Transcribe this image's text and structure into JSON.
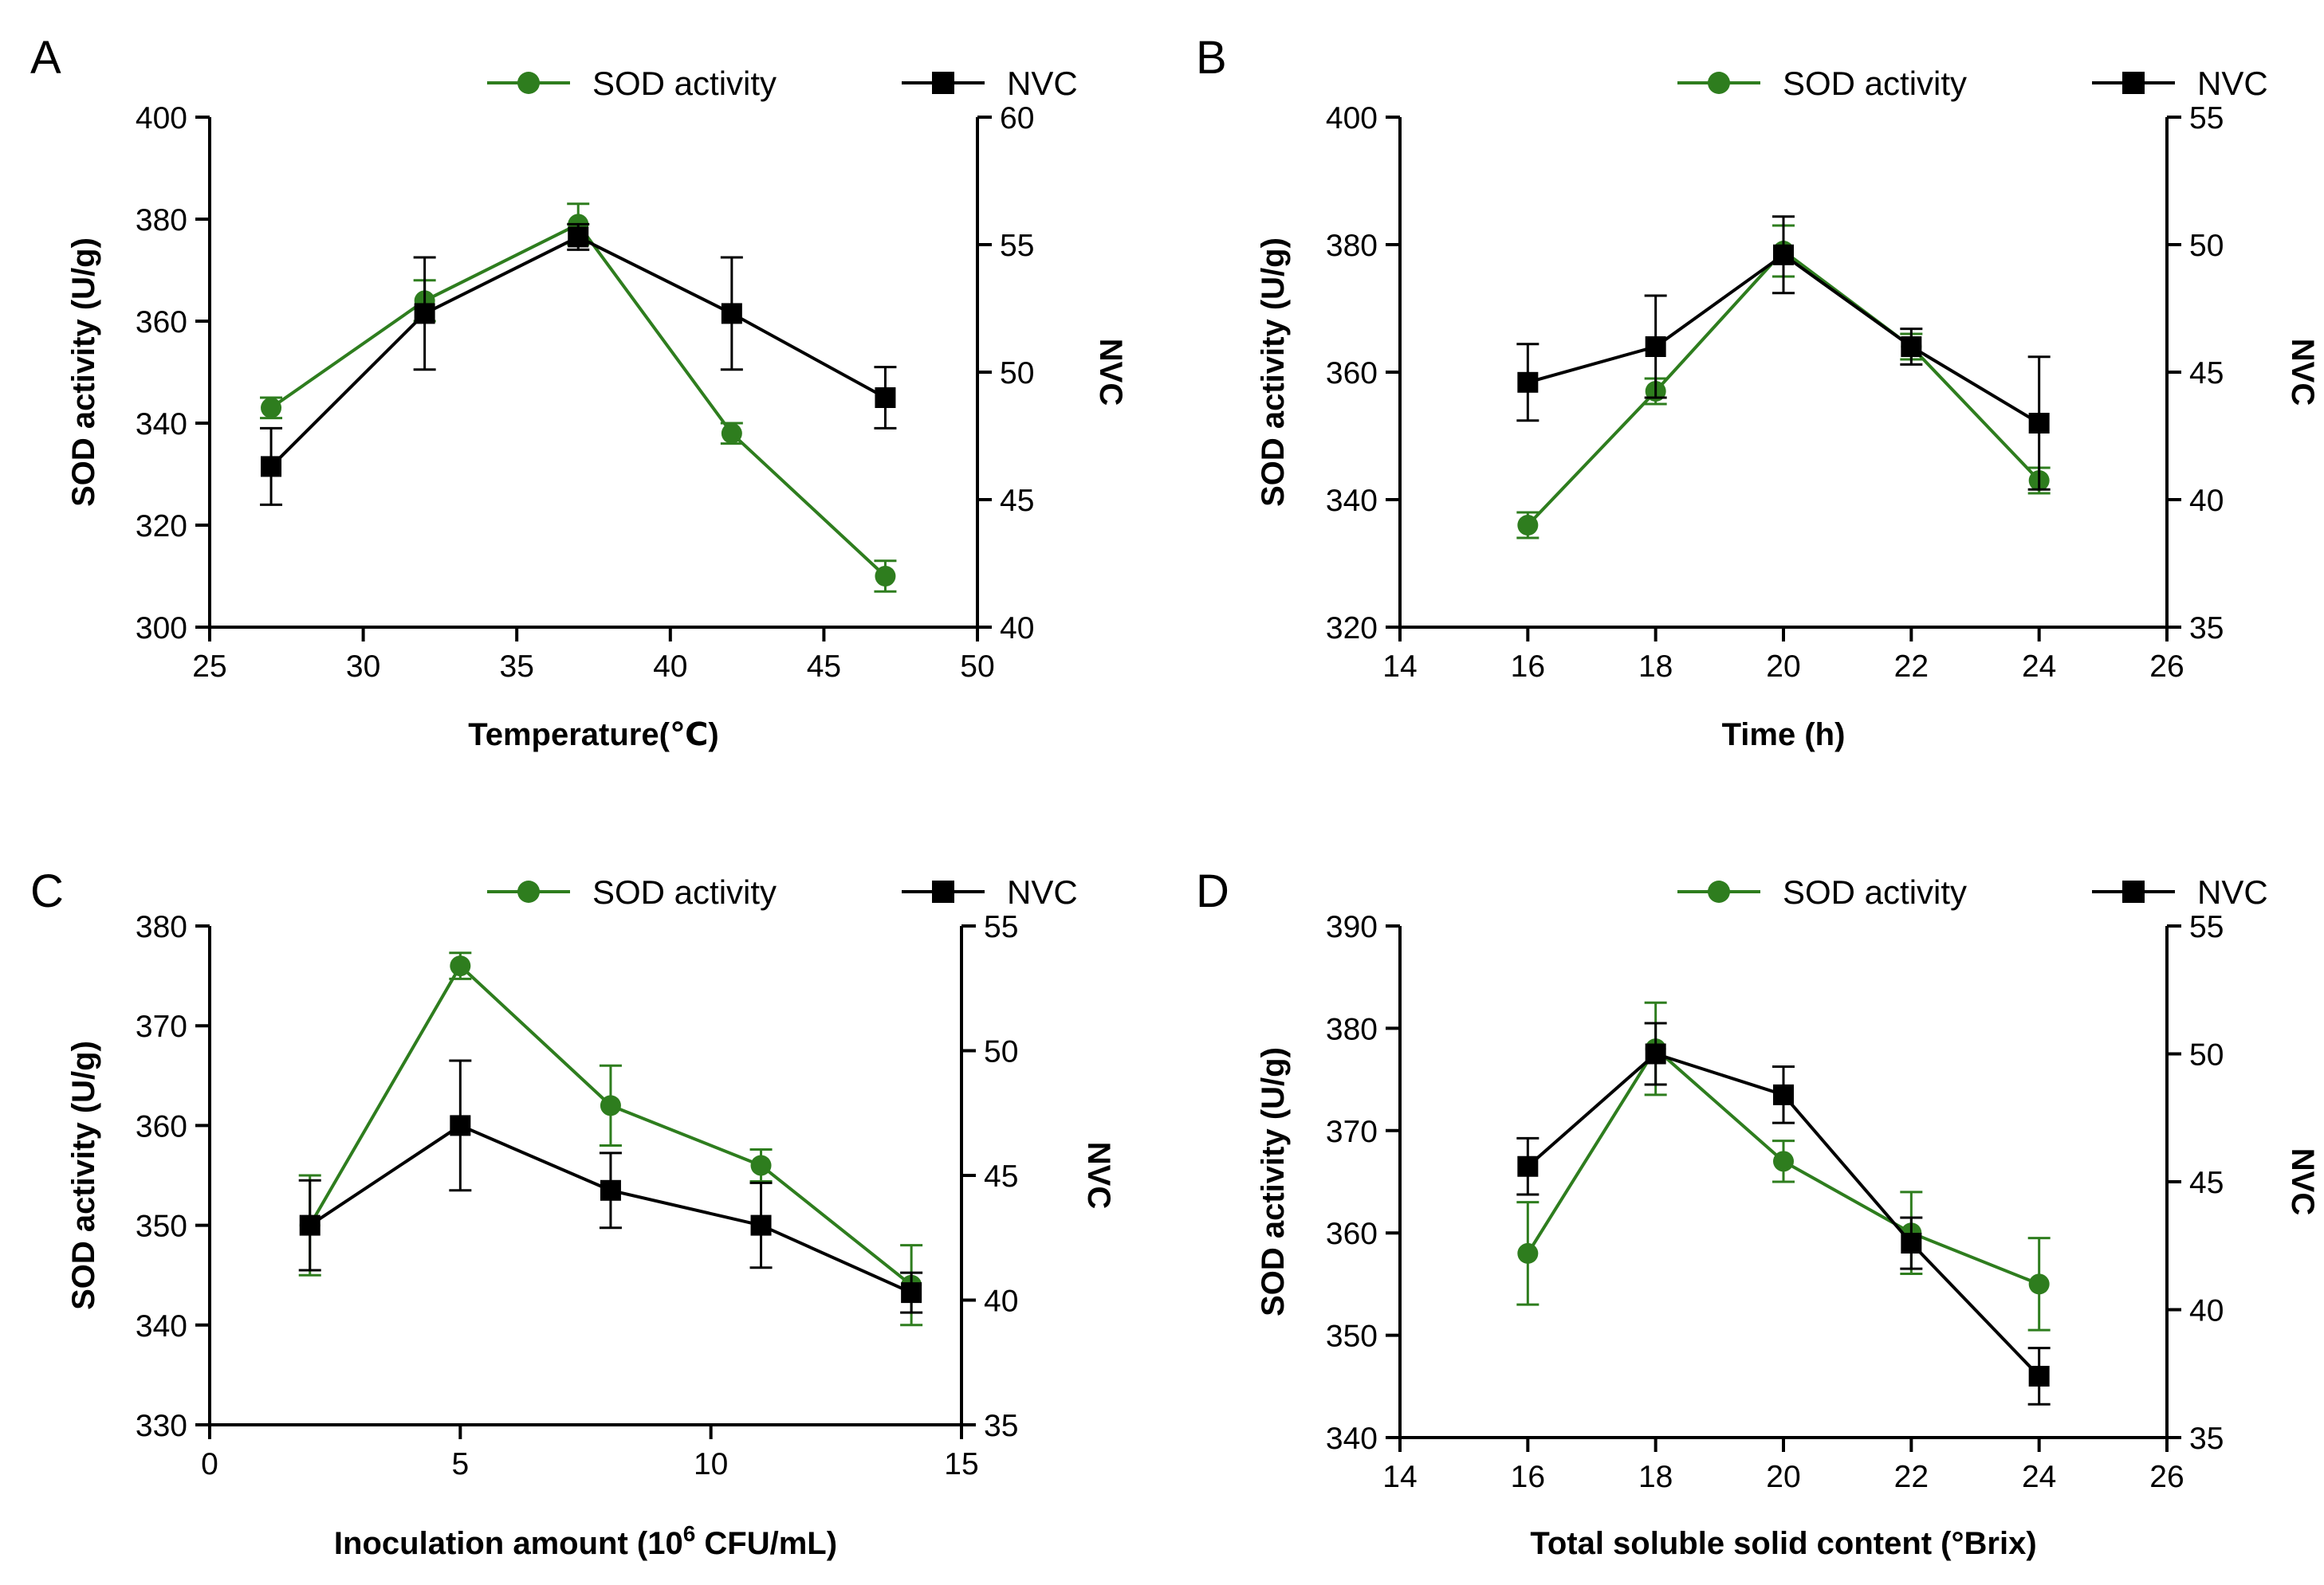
{
  "colors": {
    "sod": "#2e7d1e",
    "nvc": "#000000"
  },
  "chart_data": [
    {
      "panel": "A",
      "type": "line",
      "legend": [
        "SOD activity",
        "NVC"
      ],
      "xlabel": "Temperature(℃)",
      "ylabel": "SOD activity (U/g)",
      "y2label": "NVC",
      "xlim": [
        25,
        50
      ],
      "xticks": [
        25,
        30,
        35,
        40,
        45,
        50
      ],
      "ylim": [
        300,
        400
      ],
      "yticks": [
        300,
        320,
        340,
        360,
        380,
        400
      ],
      "y2lim": [
        40,
        60
      ],
      "y2ticks": [
        40,
        45,
        50,
        55,
        60
      ],
      "series": [
        {
          "name": "SOD activity",
          "axis": "left",
          "marker": "circle",
          "x": [
            27,
            32,
            37,
            42,
            47
          ],
          "values": [
            343,
            364,
            379,
            338,
            310
          ],
          "err": [
            2,
            4,
            4,
            2,
            3
          ]
        },
        {
          "name": "NVC",
          "axis": "right",
          "marker": "square",
          "x": [
            27,
            32,
            37,
            42,
            47
          ],
          "values": [
            46.3,
            52.3,
            55.3,
            52.3,
            49.0
          ],
          "err": [
            1.5,
            2.2,
            0.5,
            2.2,
            1.2
          ]
        }
      ]
    },
    {
      "panel": "B",
      "type": "line",
      "legend": [
        "SOD activity",
        "NVC"
      ],
      "xlabel": "Time  (h)",
      "ylabel": "SOD activity (U/g)",
      "y2label": "NVC",
      "xlim": [
        14,
        26
      ],
      "xticks": [
        14,
        16,
        18,
        20,
        22,
        24,
        26
      ],
      "ylim": [
        320,
        400
      ],
      "yticks": [
        320,
        340,
        360,
        380,
        400
      ],
      "y2lim": [
        35,
        55
      ],
      "y2ticks": [
        35,
        40,
        45,
        50,
        55
      ],
      "series": [
        {
          "name": "SOD activity",
          "axis": "left",
          "marker": "circle",
          "x": [
            16,
            18,
            20,
            22,
            24
          ],
          "values": [
            336,
            357,
            379,
            364,
            343
          ],
          "err": [
            2,
            2,
            4,
            2,
            2
          ]
        },
        {
          "name": "NVC",
          "axis": "right",
          "marker": "square",
          "x": [
            16,
            18,
            20,
            22,
            24
          ],
          "values": [
            44.6,
            46.0,
            49.6,
            46.0,
            43.0
          ],
          "err": [
            1.5,
            2.0,
            1.5,
            0.7,
            2.6
          ]
        }
      ]
    },
    {
      "panel": "C",
      "type": "line",
      "legend": [
        "SOD activity",
        "NVC"
      ],
      "xlabel": "Inoculation amount  (10",
      "xlabel_sup": "6",
      "xlabel_end": " CFU/mL)",
      "ylabel": "SOD activity (U/g)",
      "y2label": "NVC",
      "xlim": [
        0,
        15
      ],
      "xticks": [
        0,
        5,
        10,
        15
      ],
      "ylim": [
        330,
        380
      ],
      "yticks": [
        330,
        340,
        350,
        360,
        370,
        380
      ],
      "y2lim": [
        35,
        55
      ],
      "y2ticks": [
        35,
        40,
        45,
        50,
        55
      ],
      "series": [
        {
          "name": "SOD activity",
          "axis": "left",
          "marker": "circle",
          "x": [
            2,
            5,
            8,
            11,
            14
          ],
          "values": [
            350,
            376,
            362,
            356,
            344
          ],
          "err": [
            5,
            1.3,
            4,
            1.6,
            4
          ]
        },
        {
          "name": "NVC",
          "axis": "right",
          "marker": "square",
          "x": [
            2,
            5,
            8,
            11,
            14
          ],
          "values": [
            43.0,
            47.0,
            44.4,
            43.0,
            40.3
          ],
          "err": [
            1.8,
            2.6,
            1.5,
            1.7,
            0.8
          ]
        }
      ]
    },
    {
      "panel": "D",
      "type": "line",
      "legend": [
        "SOD activity",
        "NVC"
      ],
      "xlabel": "Total soluble solid content  (°Brix)",
      "ylabel": "SOD activity (U/g)",
      "y2label": "NVC",
      "xlim": [
        14,
        26
      ],
      "xticks": [
        14,
        16,
        18,
        20,
        22,
        24,
        26
      ],
      "ylim": [
        340,
        390
      ],
      "yticks": [
        340,
        350,
        360,
        370,
        380,
        390
      ],
      "y2lim": [
        35,
        55
      ],
      "y2ticks": [
        35,
        40,
        45,
        50,
        55
      ],
      "series": [
        {
          "name": "SOD activity",
          "axis": "left",
          "marker": "circle",
          "x": [
            16,
            18,
            20,
            22,
            24
          ],
          "values": [
            358,
            378,
            367,
            360,
            355
          ],
          "err": [
            5,
            4.5,
            2,
            4,
            4.5
          ]
        },
        {
          "name": "NVC",
          "axis": "right",
          "marker": "square",
          "x": [
            16,
            18,
            20,
            22,
            24
          ],
          "values": [
            45.6,
            50.0,
            48.4,
            42.6,
            37.4
          ],
          "err": [
            1.1,
            1.2,
            1.1,
            1.0,
            1.1
          ]
        }
      ]
    }
  ]
}
